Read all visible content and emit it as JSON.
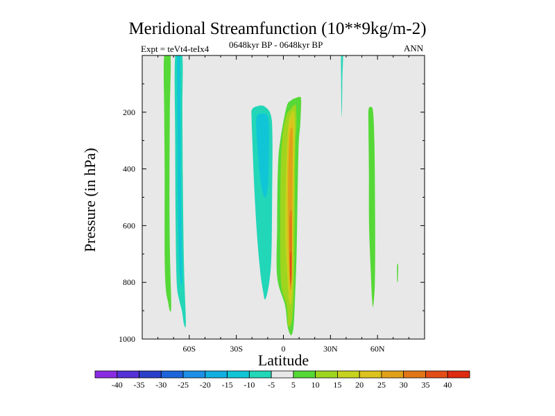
{
  "chart_data": {
    "type": "contour",
    "title": "Meridional Streamfunction (10**9kg/m-2)",
    "subtitle": "0648kyr BP - 0648kyr BP",
    "experiment": "Expt = teVt4-teIx4",
    "season": "ANN",
    "xlabel": "Latitude",
    "ylabel": "Pressure (in hPa)",
    "xlim": [
      -90,
      90
    ],
    "ylim": [
      1000,
      0
    ],
    "y_reversed": true,
    "grid": false,
    "background_color": "#e8e8e8",
    "x_ticks": [
      {
        "value": -60,
        "label": "60S"
      },
      {
        "value": -30,
        "label": "30S"
      },
      {
        "value": 0,
        "label": "0"
      },
      {
        "value": 30,
        "label": "30N"
      },
      {
        "value": 60,
        "label": "60N"
      }
    ],
    "y_ticks": [
      {
        "value": 200,
        "label": "200"
      },
      {
        "value": 400,
        "label": "400"
      },
      {
        "value": 600,
        "label": "600"
      },
      {
        "value": 800,
        "label": "800"
      },
      {
        "value": 1000,
        "label": "1000"
      }
    ],
    "colorbar": {
      "labels": [
        "-40",
        "-35",
        "-30",
        "-25",
        "-20",
        "-15",
        "-10",
        "-5",
        "5",
        "10",
        "15",
        "20",
        "25",
        "30",
        "35",
        "40"
      ],
      "colors": [
        "#8a2be2",
        "#5531d6",
        "#2a3fc8",
        "#1c64da",
        "#1d8fe6",
        "#12aee0",
        "#10c6d6",
        "#22d6b8",
        "#e8e8e8",
        "#56d837",
        "#9ed51e",
        "#c7d21e",
        "#dcc21c",
        "#e0a01a",
        "#e27518",
        "#e24d17",
        "#de2a10"
      ]
    },
    "regions": [
      {
        "name": "band-a-outer",
        "level": 5,
        "color": "#56d837",
        "points": [
          [
            -76,
            0
          ],
          [
            -72,
            0
          ],
          [
            -72.4,
            200
          ],
          [
            -72.6,
            500
          ],
          [
            -72.3,
            700
          ],
          [
            -71.5,
            880
          ],
          [
            -72.4,
            900
          ],
          [
            -73.5,
            870
          ],
          [
            -75,
            820
          ],
          [
            -75.7,
            700
          ],
          [
            -75.7,
            400
          ],
          [
            -76,
            200
          ]
        ]
      },
      {
        "name": "band-b-outer",
        "level": -5,
        "color": "#22d6b8",
        "points": [
          [
            -69,
            0
          ],
          [
            -64.5,
            0
          ],
          [
            -64.4,
            200
          ],
          [
            -64,
            500
          ],
          [
            -63.3,
            760
          ],
          [
            -62.2,
            940
          ],
          [
            -63.3,
            950
          ],
          [
            -64.7,
            900
          ],
          [
            -66.5,
            860
          ],
          [
            -68,
            800
          ],
          [
            -68.7,
            600
          ],
          [
            -69,
            300
          ]
        ]
      },
      {
        "name": "band-b-inner",
        "level": -10,
        "color": "#10c6d6",
        "points": [
          [
            -67.6,
            0
          ],
          [
            -66,
            0
          ],
          [
            -65.6,
            200
          ],
          [
            -65.3,
            450
          ],
          [
            -64.7,
            700
          ],
          [
            -64.6,
            800
          ],
          [
            -65.6,
            800
          ],
          [
            -66.6,
            700
          ],
          [
            -67.3,
            450
          ],
          [
            -67.6,
            200
          ]
        ]
      },
      {
        "name": "band-c-outer",
        "level": -5,
        "color": "#22d6b8",
        "points": [
          [
            -20,
            190
          ],
          [
            -16,
            178
          ],
          [
            -12,
            180
          ],
          [
            -8,
            210
          ],
          [
            -7,
            290
          ],
          [
            -7.2,
            500
          ],
          [
            -7.6,
            700
          ],
          [
            -9,
            800
          ],
          [
            -11.5,
            860
          ],
          [
            -13,
            830
          ],
          [
            -14.8,
            760
          ],
          [
            -17,
            620
          ],
          [
            -18.7,
            450
          ],
          [
            -19.8,
            300
          ],
          [
            -20.3,
            220
          ]
        ]
      },
      {
        "name": "band-c-inner",
        "level": -10,
        "color": "#10c6d6",
        "points": [
          [
            -17,
            215
          ],
          [
            -13,
            205
          ],
          [
            -9.5,
            225
          ],
          [
            -9.2,
            350
          ],
          [
            -10,
            470
          ],
          [
            -12,
            500
          ],
          [
            -14.4,
            450
          ],
          [
            -16,
            360
          ],
          [
            -17.2,
            270
          ]
        ]
      },
      {
        "name": "band-d-5",
        "level": 5,
        "color": "#56d837",
        "points": [
          [
            2,
            182
          ],
          [
            5,
            158
          ],
          [
            8,
            150
          ],
          [
            10.3,
            146
          ],
          [
            11.3,
            158
          ],
          [
            10.8,
            240
          ],
          [
            9.7,
            320
          ],
          [
            9,
            500
          ],
          [
            8.4,
            700
          ],
          [
            7.4,
            860
          ],
          [
            6.5,
            955
          ],
          [
            5.2,
            985
          ],
          [
            4,
            980
          ],
          [
            2.5,
            950
          ],
          [
            1,
            880
          ],
          [
            -4,
            780
          ],
          [
            -4,
            600
          ],
          [
            -3.5,
            400
          ],
          [
            -2,
            300
          ]
        ]
      },
      {
        "name": "band-d-10",
        "level": 10,
        "color": "#9ed51e",
        "points": [
          [
            2,
            210
          ],
          [
            4.5,
            190
          ],
          [
            6.8,
            175
          ],
          [
            8,
            180
          ],
          [
            8.3,
            240
          ],
          [
            7.6,
            320
          ],
          [
            7.3,
            500
          ],
          [
            7,
            700
          ],
          [
            6.5,
            850
          ],
          [
            5.5,
            930
          ],
          [
            4.3,
            955
          ],
          [
            3,
            950
          ],
          [
            2,
            880
          ],
          [
            -1.5,
            800
          ],
          [
            -2,
            600
          ],
          [
            -1.7,
            400
          ],
          [
            -0.5,
            280
          ]
        ]
      },
      {
        "name": "band-d-15",
        "level": 15,
        "color": "#c7d21e",
        "points": [
          [
            3.5,
            230
          ],
          [
            5.5,
            200
          ],
          [
            7,
            200
          ],
          [
            7.3,
            260
          ],
          [
            6.8,
            420
          ],
          [
            6.3,
            600
          ],
          [
            6,
            750
          ],
          [
            5.5,
            850
          ],
          [
            4.5,
            880
          ],
          [
            3.5,
            860
          ],
          [
            2.5,
            780
          ],
          [
            1.2,
            650
          ],
          [
            1.5,
            450
          ],
          [
            2.2,
            330
          ]
        ]
      },
      {
        "name": "band-d-20",
        "level": 20,
        "color": "#dcc21c",
        "points": [
          [
            3.5,
            255
          ],
          [
            5.5,
            225
          ],
          [
            6.5,
            240
          ],
          [
            6.2,
            360
          ],
          [
            6,
            520
          ],
          [
            5.7,
            700
          ],
          [
            5,
            830
          ],
          [
            4.2,
            850
          ],
          [
            3.2,
            780
          ],
          [
            2.5,
            650
          ],
          [
            2.3,
            480
          ],
          [
            2.7,
            330
          ]
        ]
      },
      {
        "name": "band-d-25",
        "level": 25,
        "color": "#e0a01a",
        "points": [
          [
            4,
            285
          ],
          [
            5.5,
            255
          ],
          [
            6,
            300
          ],
          [
            5.7,
            470
          ],
          [
            5.5,
            650
          ],
          [
            5,
            800
          ],
          [
            4.3,
            800
          ],
          [
            3.6,
            720
          ],
          [
            3.1,
            580
          ],
          [
            3.1,
            420
          ]
        ]
      },
      {
        "name": "band-d-30",
        "level": 30,
        "color": "#e27518",
        "points": [
          [
            4.2,
            560
          ],
          [
            5.3,
            560
          ],
          [
            5.4,
            720
          ],
          [
            5,
            820
          ],
          [
            4.5,
            815
          ],
          [
            4,
            760
          ],
          [
            3.9,
            640
          ]
        ]
      },
      {
        "name": "band-d-35",
        "level": 35,
        "color": "#e24d17",
        "points": [
          [
            4.3,
            700
          ],
          [
            5.2,
            700
          ],
          [
            5.3,
            770
          ],
          [
            5,
            800
          ],
          [
            4.5,
            800
          ],
          [
            4.2,
            760
          ]
        ]
      },
      {
        "name": "band-e",
        "level": -5,
        "color": "#22d6b8",
        "points": [
          [
            36.8,
            0
          ],
          [
            38,
            0
          ],
          [
            37.6,
            80
          ],
          [
            37.3,
            200
          ],
          [
            37,
            200
          ],
          [
            36.8,
            80
          ]
        ]
      },
      {
        "name": "band-f",
        "level": 5,
        "color": "#56d837",
        "points": [
          [
            54.3,
            190
          ],
          [
            56,
            182
          ],
          [
            57.2,
            200
          ],
          [
            58,
            300
          ],
          [
            58.4,
            500
          ],
          [
            58.5,
            700
          ],
          [
            58.2,
            820
          ],
          [
            57.2,
            885
          ],
          [
            56.5,
            860
          ],
          [
            55.7,
            760
          ],
          [
            54.6,
            600
          ],
          [
            54.5,
            400
          ],
          [
            54.2,
            250
          ]
        ]
      },
      {
        "name": "band-g",
        "level": 5,
        "color": "#56d837",
        "points": [
          [
            72.5,
            740
          ],
          [
            73.2,
            740
          ],
          [
            73,
            790
          ],
          [
            72.8,
            800
          ],
          [
            72.5,
            790
          ]
        ]
      }
    ]
  }
}
